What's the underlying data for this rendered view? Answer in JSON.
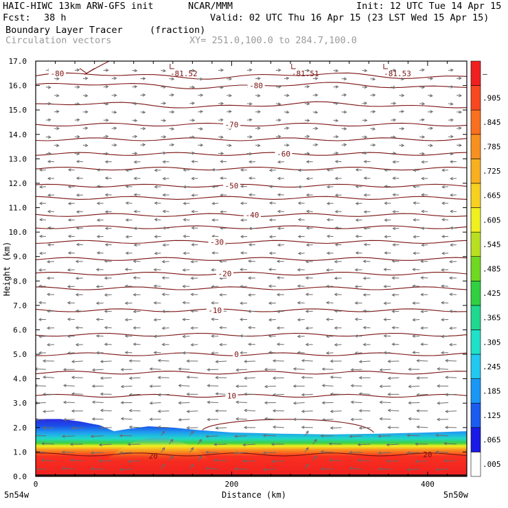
{
  "header": {
    "model": "HAIC-HIWC 13km ARW-GFS init",
    "org": "NCAR/MMM",
    "init": "Init: 12 UTC Tue 14 Apr 15",
    "fcst_label": "Fcst:",
    "fcst_value": "38 h",
    "valid": "Valid: 02 UTC Thu 16 Apr 15 (23 LST Wed 15 Apr 15)",
    "field": "Boundary Layer Tracer",
    "units": "(fraction)",
    "vectors": "Circulation vectors",
    "xy": "XY= 251.0,100.0 to 284.7,100.0"
  },
  "chart_data": {
    "type": "heatmap",
    "ylabel": "Height (km)",
    "xlabel": "Distance (km)",
    "ylim": [
      0,
      17
    ],
    "xlim": [
      0,
      440
    ],
    "yticks": [
      "0.0",
      "1.0",
      "2.0",
      "3.0",
      "4.0",
      "5.0",
      "6.0",
      "7.0",
      "8.0",
      "9.0",
      "10.0",
      "11.0",
      "12.0",
      "13.0",
      "14.0",
      "15.0",
      "16.0",
      "17.0"
    ],
    "xticks": [
      {
        "value": 0,
        "label": "0"
      },
      {
        "value": 200,
        "label": "200"
      },
      {
        "value": 400,
        "label": "400"
      }
    ],
    "x_endpoints": {
      "left": "5n54w",
      "right": "5n50w"
    },
    "colorbar": {
      "labels": [
        ".005",
        ".065",
        ".125",
        ".185",
        ".245",
        ".305",
        ".365",
        ".425",
        ".485",
        ".545",
        ".605",
        ".665",
        ".725",
        ".785",
        ".845",
        ".905",
        "–"
      ],
      "colors": [
        "#ffffff",
        "#1a1ae6",
        "#1a5cf0",
        "#1a96f5",
        "#22c8f0",
        "#20e0c8",
        "#20d890",
        "#30d040",
        "#70d820",
        "#b8e020",
        "#f0f020",
        "#f8d020",
        "#f8b020",
        "#f89020",
        "#f87020",
        "#f84820",
        "#f02020"
      ]
    },
    "isotherms": [
      {
        "label": "-80",
        "y": 16.4
      },
      {
        "label": "-80",
        "y": 16.0
      },
      {
        "label": "",
        "y": 15.2
      },
      {
        "label": "-70",
        "y": 14.4
      },
      {
        "label": "",
        "y": 13.8
      },
      {
        "label": "-60",
        "y": 13.2
      },
      {
        "label": "",
        "y": 12.6
      },
      {
        "label": "-50",
        "y": 11.9
      },
      {
        "label": "",
        "y": 11.4
      },
      {
        "label": "-40",
        "y": 10.7
      },
      {
        "label": "",
        "y": 10.2
      },
      {
        "label": "-30",
        "y": 9.6
      },
      {
        "label": "",
        "y": 8.9
      },
      {
        "label": "-20",
        "y": 8.3
      },
      {
        "label": "",
        "y": 7.7
      },
      {
        "label": "-10",
        "y": 6.8
      },
      {
        "label": "",
        "y": 5.8
      },
      {
        "label": "0",
        "y": 5.0
      },
      {
        "label": "",
        "y": 4.25
      },
      {
        "label": "10",
        "y": 3.3
      },
      {
        "label": "20",
        "y": 0.9
      }
    ],
    "isotherm_labels": [
      {
        "text": "-80",
        "x": 22,
        "y": 16.5
      },
      {
        "text": "-80",
        "x": 225,
        "y": 16.0
      },
      {
        "text": "-70",
        "x": 200,
        "y": 14.4
      },
      {
        "text": "-60",
        "x": 253,
        "y": 13.2
      },
      {
        "text": "-50",
        "x": 200,
        "y": 11.9
      },
      {
        "text": "-40",
        "x": 221,
        "y": 10.7
      },
      {
        "text": "-30",
        "x": 185,
        "y": 9.6
      },
      {
        "text": "-20",
        "x": 193,
        "y": 8.3
      },
      {
        "text": "-10",
        "x": 183,
        "y": 6.8
      },
      {
        "text": "0",
        "x": 205,
        "y": 5.0
      },
      {
        "text": "10",
        "x": 200,
        "y": 3.3
      },
      {
        "text": "20",
        "x": 120,
        "y": 0.85
      },
      {
        "text": "20",
        "x": 400,
        "y": 0.9
      }
    ],
    "tropopause_minima": [
      {
        "text": "-81.52",
        "x": 140
      },
      {
        "text": "-81.51",
        "x": 264
      },
      {
        "text": "-81.53",
        "x": 358
      }
    ]
  }
}
